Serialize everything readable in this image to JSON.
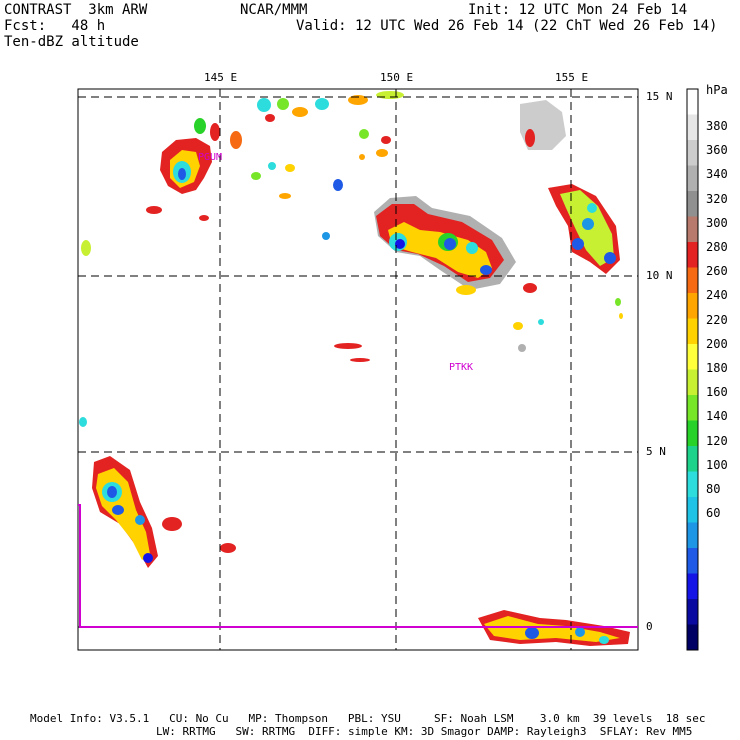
{
  "header": {
    "title_left": "CONTRAST  3km ARW",
    "fcst": "Fcst:   48 h",
    "field": "Ten-dBZ altitude",
    "center": "NCAR/MMM",
    "init": "Init: 12 UTC Mon 24 Feb 14",
    "valid": "Valid: 12 UTC Wed 26 Feb 14 (22 ChT Wed 26 Feb 14)"
  },
  "axes": {
    "lon_labels": [
      "145 E",
      "150 E",
      "155 E"
    ],
    "lat_labels": [
      "15 N",
      "10 N",
      "5 N",
      "0"
    ]
  },
  "stations": [
    "PGUM",
    "PTKK"
  ],
  "colorbar": {
    "unit": "hPa",
    "levels": [
      "380",
      "360",
      "340",
      "320",
      "300",
      "280",
      "260",
      "240",
      "220",
      "200",
      "180",
      "160",
      "140",
      "120",
      "100",
      "80",
      "60"
    ],
    "colors": [
      "#ffffff",
      "#e6e6e6",
      "#cccccc",
      "#b0b0b0",
      "#909090",
      "#b87a6c",
      "#e32222",
      "#f56a12",
      "#ffa500",
      "#ffd200",
      "#ffff3c",
      "#c8f032",
      "#78e628",
      "#28d228",
      "#1ed28c",
      "#2ddcdc",
      "#1ec3e6",
      "#1e96e6",
      "#1e5ae6",
      "#1414e6",
      "#0a0aa0",
      "#000064"
    ],
    "label_colors": [
      "#e6e6e6",
      "#b0b0b0",
      "#b87a6c",
      "#f56a12",
      "#ffd200",
      "#c8f032",
      "#28d228",
      "#2ddcdc",
      "#1e96e6",
      "#1414e6",
      "#000064"
    ]
  },
  "footer": {
    "line1": "Model Info: V3.5.1   CU: No Cu   MP: Thompson   PBL: YSU     SF: Noah LSM    3.0 km  39 levels  18 sec",
    "line2": "LW: RRTMG   SW: RRTMG  DIFF: simple KM: 3D Smagor DAMP: Rayleigh3  SFLAY: Rev MM5"
  }
}
